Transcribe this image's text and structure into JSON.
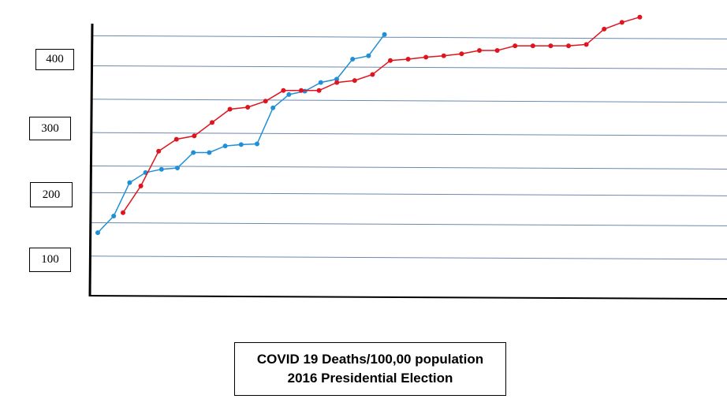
{
  "caption": {
    "line1": "COVID 19 Deaths/100,00 population",
    "line2": "2016 Presidential Election"
  },
  "chart_data": {
    "type": "line",
    "title": "COVID 19 Deaths/100,00 population 2016 Presidential Election",
    "xlabel": "",
    "ylabel": "",
    "ylim": [
      50,
      450
    ],
    "gridlines": [
      105,
      155,
      200,
      240,
      290,
      340,
      390,
      435
    ],
    "grid": true,
    "colors": {
      "blue": "#1f8fd6",
      "red": "#e0141e",
      "grid": "#6a8ab0",
      "axis": "#000000"
    },
    "y_tick_labels": [
      {
        "label": "400",
        "value": 400
      },
      {
        "label": "300",
        "value": 300
      },
      {
        "label": "200",
        "value": 200
      },
      {
        "label": "100",
        "value": 100
      }
    ],
    "series": [
      {
        "color": "#1f8fd6",
        "points": [
          [
            1,
            140
          ],
          [
            2,
            165
          ],
          [
            3,
            215
          ],
          [
            4,
            230
          ],
          [
            5,
            235
          ],
          [
            6,
            237
          ],
          [
            7,
            260
          ],
          [
            8,
            260
          ],
          [
            9,
            270
          ],
          [
            10,
            272
          ],
          [
            11,
            273
          ],
          [
            12,
            327
          ],
          [
            13,
            347
          ],
          [
            14,
            352
          ],
          [
            15,
            365
          ],
          [
            16,
            370
          ],
          [
            17,
            400
          ],
          [
            18,
            405
          ],
          [
            19,
            437
          ]
        ]
      },
      {
        "color": "#e0141e",
        "points": [
          [
            1,
            170
          ],
          [
            2,
            210
          ],
          [
            3,
            262
          ],
          [
            4,
            280
          ],
          [
            5,
            285
          ],
          [
            6,
            305
          ],
          [
            7,
            325
          ],
          [
            8,
            328
          ],
          [
            9,
            337
          ],
          [
            10,
            353
          ],
          [
            11,
            353
          ],
          [
            12,
            353
          ],
          [
            13,
            365
          ],
          [
            14,
            368
          ],
          [
            15,
            377
          ],
          [
            16,
            398
          ],
          [
            17,
            400
          ],
          [
            18,
            403
          ],
          [
            19,
            405
          ],
          [
            20,
            408
          ],
          [
            21,
            413
          ],
          [
            22,
            413
          ],
          [
            23,
            420
          ],
          [
            24,
            420
          ],
          [
            25,
            420
          ],
          [
            26,
            420
          ],
          [
            27,
            422
          ],
          [
            28,
            445
          ],
          [
            29,
            455
          ],
          [
            30,
            463
          ]
        ]
      }
    ]
  }
}
